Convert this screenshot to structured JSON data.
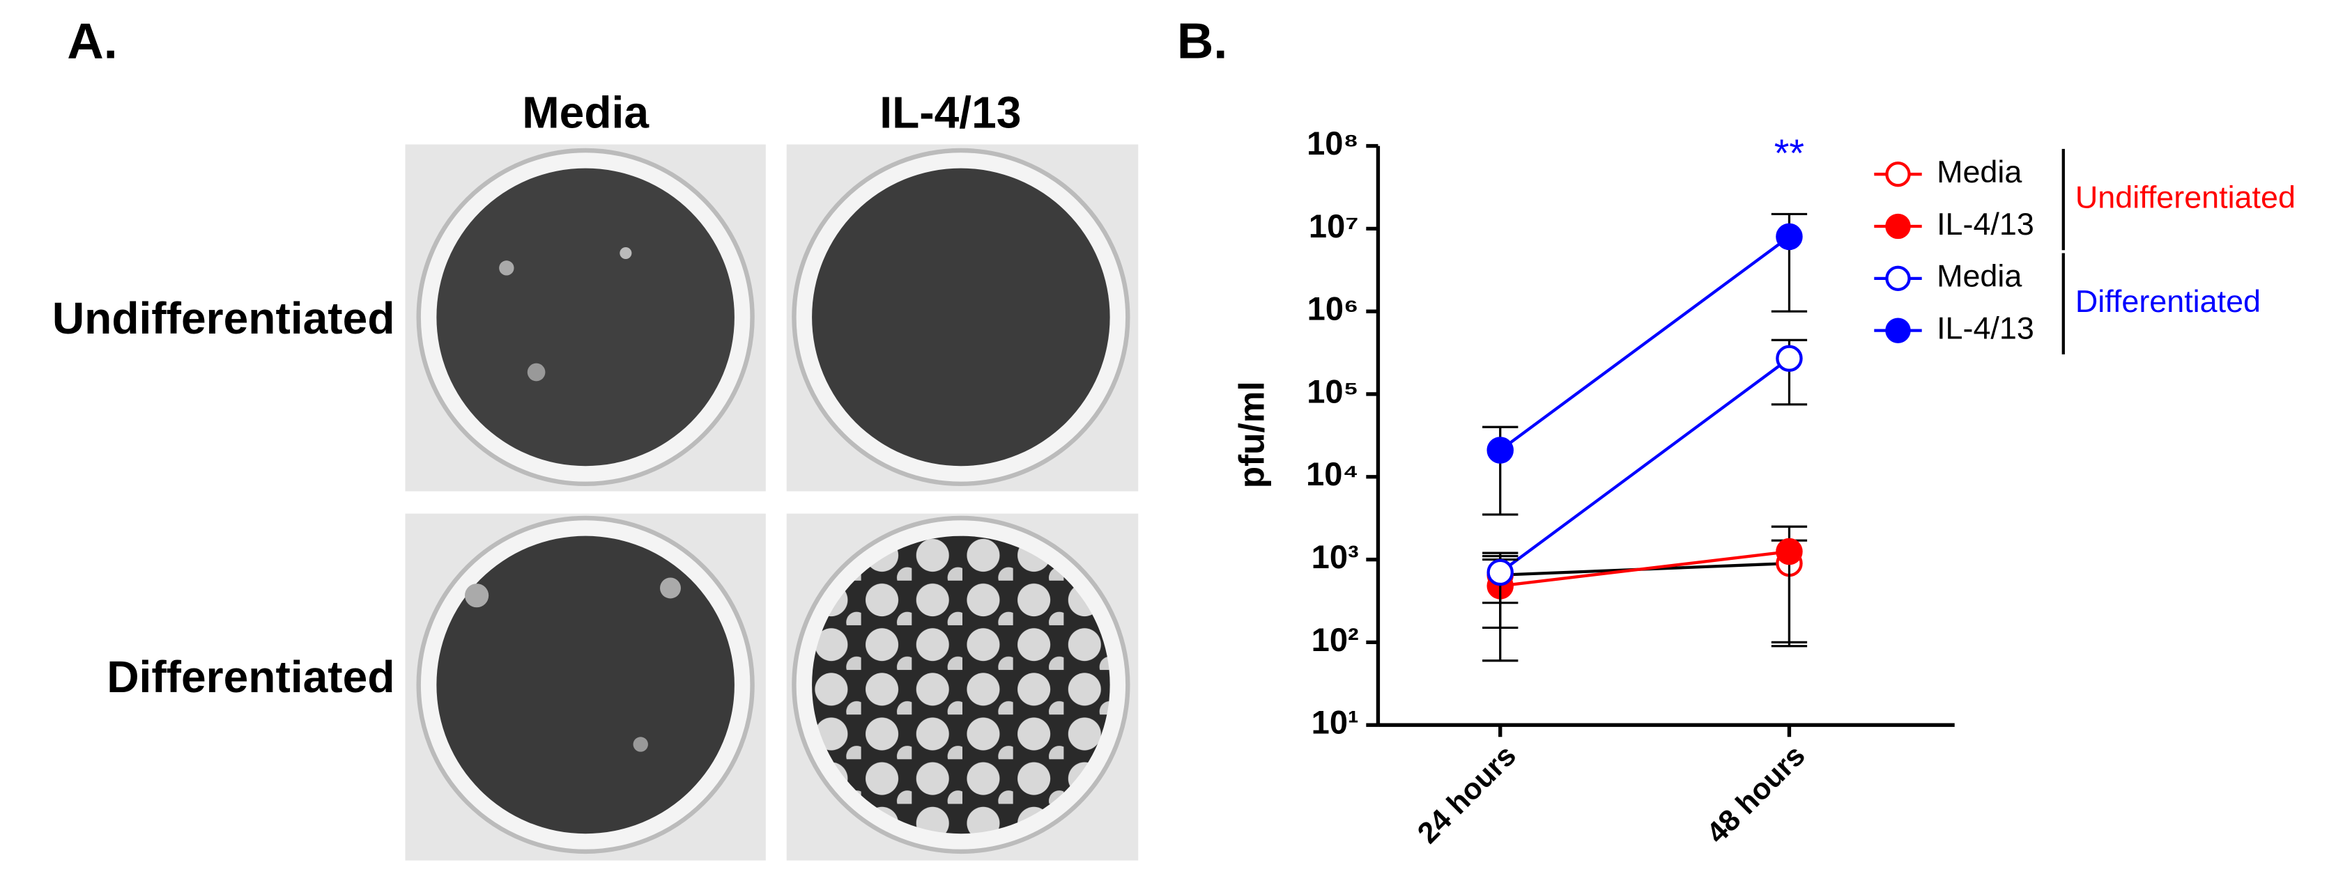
{
  "panel_a": {
    "label": "A.",
    "columns": [
      "Media",
      "IL-4/13"
    ],
    "rows": [
      "Undifferentiated",
      "Differentiated"
    ]
  },
  "chart_data": {
    "type": "line",
    "panel_label": "B.",
    "y_label": "pfu/ml",
    "log_scale": true,
    "categories": [
      "24 hours",
      "48 hours"
    ],
    "ylim": [
      10,
      100000000
    ],
    "yticks": [
      {
        "value": 10,
        "label": "10¹"
      },
      {
        "value": 100,
        "label": "10²"
      },
      {
        "value": 1000,
        "label": "10³"
      },
      {
        "value": 10000,
        "label": "10⁴"
      },
      {
        "value": 100000,
        "label": "10⁵"
      },
      {
        "value": 1000000,
        "label": "10⁶"
      },
      {
        "value": 10000000,
        "label": "10⁷"
      },
      {
        "value": 100000000,
        "label": "10⁸"
      }
    ],
    "series": [
      {
        "name": "Media",
        "color": "#ff0000",
        "line_color": "#000000",
        "filled": false,
        "values": [
          650,
          900
        ],
        "error_low": [
          150,
          100
        ],
        "error_high": [
          1000,
          1700
        ]
      },
      {
        "name": "IL-4/13",
        "color": "#ff0000",
        "line_color": "#ff0000",
        "filled": true,
        "values": [
          480,
          1250
        ],
        "error_low": [
          60,
          90
        ],
        "error_high": [
          1100,
          2500
        ]
      },
      {
        "name": "Media",
        "color": "#0000ff",
        "line_color": "#0000ff",
        "filled": false,
        "values": [
          700,
          270000
        ],
        "error_low": [
          300,
          75000
        ],
        "error_high": [
          1200,
          450000
        ]
      },
      {
        "name": "IL-4/13",
        "color": "#0000ff",
        "line_color": "#0000ff",
        "filled": true,
        "values": [
          21000,
          8000000
        ],
        "error_low": [
          3500,
          1000000
        ],
        "error_high": [
          40000,
          15000000
        ]
      }
    ],
    "groups": [
      {
        "label": "Undifferentiated",
        "color": "#ff0000"
      },
      {
        "label": "Differentiated",
        "color": "#0000ff"
      }
    ],
    "annotation": {
      "text": "**",
      "color": "#0000ff"
    }
  }
}
